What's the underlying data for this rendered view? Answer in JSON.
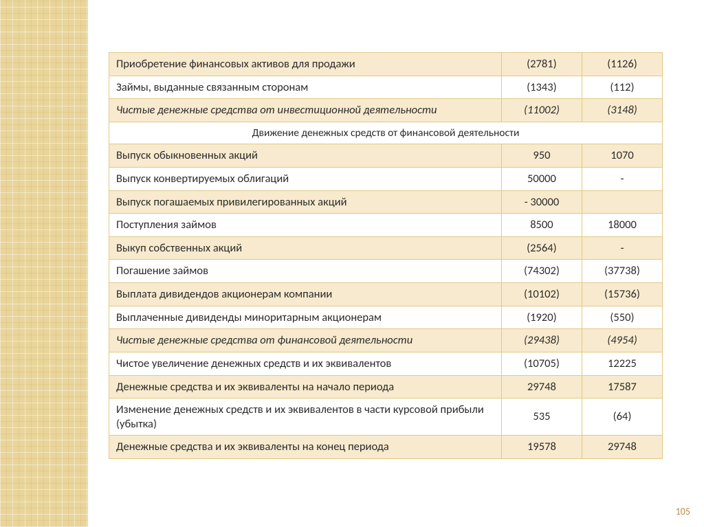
{
  "page_number": "105",
  "colors": {
    "border": "#e2c882",
    "band_bg": "#f8eace",
    "page_num": "#b88a4a",
    "pattern_bg": "#e9d59a"
  },
  "table": {
    "rows": [
      {
        "kind": "data",
        "banded": true,
        "italic": false,
        "label": "Приобретение финансовых активов для продажи",
        "v1": "(2781)",
        "v2": "(1126)"
      },
      {
        "kind": "data",
        "banded": false,
        "italic": false,
        "label": "Займы, выданные связанным сторонам",
        "v1": "(1343)",
        "v2": "(112)"
      },
      {
        "kind": "data",
        "banded": true,
        "italic": true,
        "label": "Чистые денежные средства от инвестиционной деятельности",
        "v1": "(11002)",
        "v2": "(3148)"
      },
      {
        "kind": "section",
        "banded": false,
        "label": "Движение денежных средств от финансовой деятельности"
      },
      {
        "kind": "data",
        "banded": true,
        "italic": false,
        "label": "Выпуск обыкновенных акций",
        "v1": "950",
        "v2": "1070"
      },
      {
        "kind": "data",
        "banded": false,
        "italic": false,
        "label": "Выпуск конвертируемых облигаций",
        "v1": "50000",
        "v2": "-"
      },
      {
        "kind": "data",
        "banded": true,
        "italic": false,
        "label": "Выпуск погашаемых привилегированных акций",
        "v1": "- 30000",
        "v2": ""
      },
      {
        "kind": "data",
        "banded": false,
        "italic": false,
        "label": "Поступления займов",
        "v1": "8500",
        "v2": "18000"
      },
      {
        "kind": "data",
        "banded": true,
        "italic": false,
        "label": "Выкуп собственных акций",
        "v1": "(2564)",
        "v2": "-"
      },
      {
        "kind": "data",
        "banded": false,
        "italic": false,
        "label": "Погашение займов",
        "v1": "(74302)",
        "v2": "(37738)"
      },
      {
        "kind": "data",
        "banded": true,
        "italic": false,
        "label": "Выплата дивидендов акционерам компании",
        "v1": "(10102)",
        "v2": "(15736)"
      },
      {
        "kind": "data",
        "banded": false,
        "italic": false,
        "label": "Выплаченные дивиденды миноритарным акционерам",
        "v1": "(1920)",
        "v2": "(550)"
      },
      {
        "kind": "data",
        "banded": true,
        "italic": true,
        "label": "Чистые денежные средства от финансовой деятельности",
        "v1": "(29438)",
        "v2": "(4954)"
      },
      {
        "kind": "data",
        "banded": false,
        "italic": false,
        "label": "Чистое увеличение денежных средств и их эквивалентов",
        "v1": "(10705)",
        "v2": "12225"
      },
      {
        "kind": "data",
        "banded": true,
        "italic": false,
        "label": "Денежные средства и их эквиваленты на начало периода",
        "v1": "29748",
        "v2": "17587"
      },
      {
        "kind": "data",
        "banded": false,
        "italic": false,
        "label": "Изменение денежных средств и их эквивалентов в части курсовой прибыли (убытка)",
        "v1": "535",
        "v2": "(64)"
      },
      {
        "kind": "data",
        "banded": true,
        "italic": false,
        "label": "Денежные средства и их эквиваленты на конец периода",
        "v1": "19578",
        "v2": "29748"
      }
    ]
  }
}
